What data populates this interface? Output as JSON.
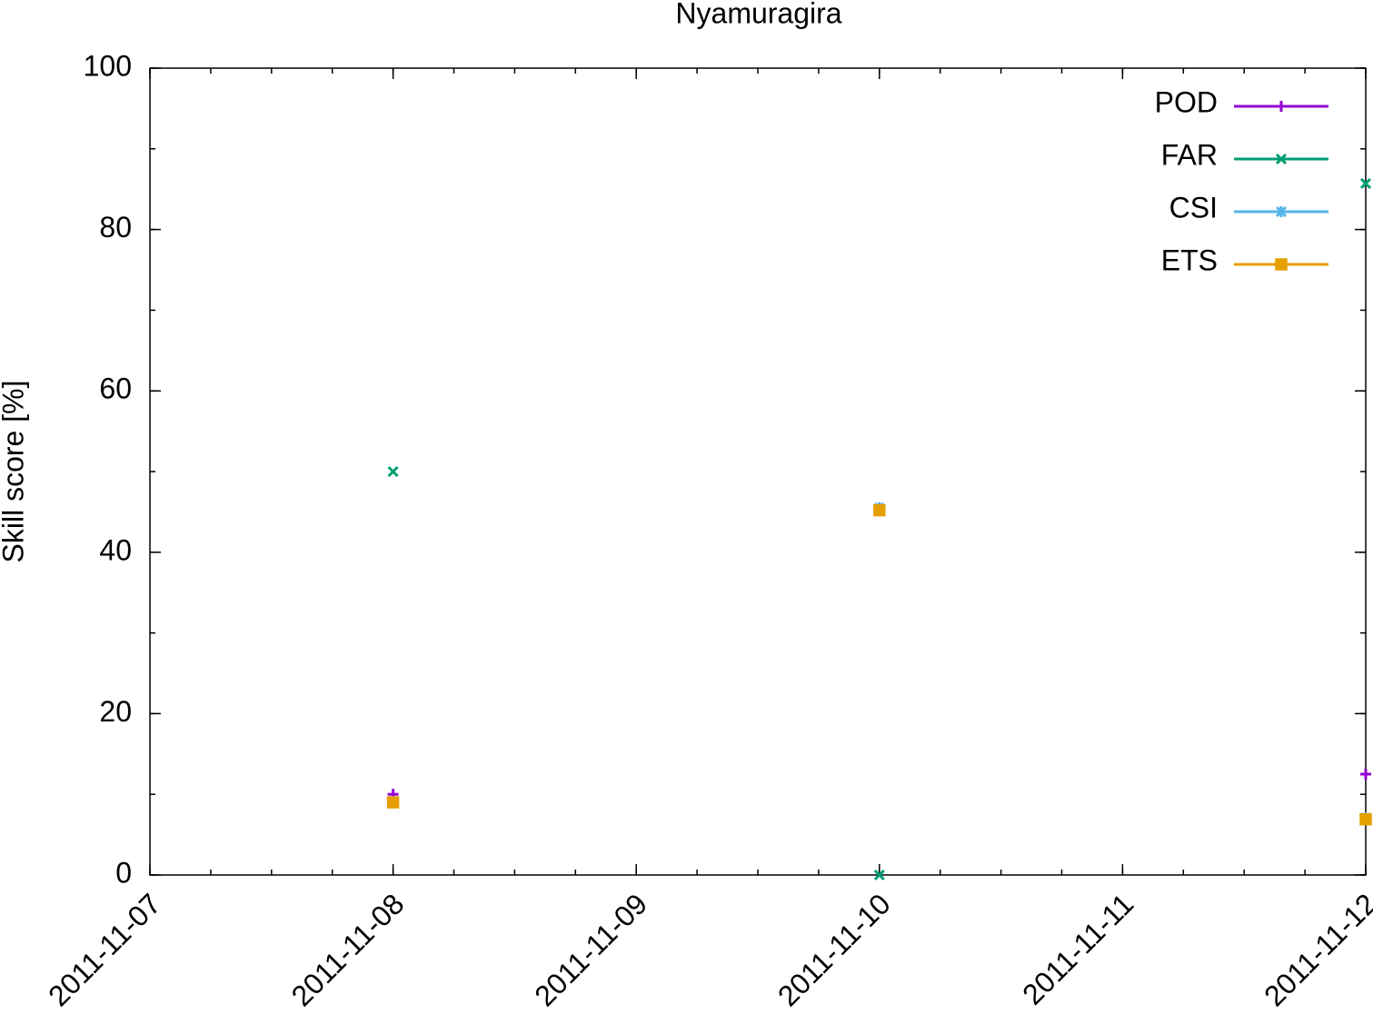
{
  "chart_data": {
    "type": "scatter",
    "title": "Nyamuragira",
    "y_label": "Skill score [%]",
    "x": [
      "2011-11-08",
      "2011-11-10",
      "2011-11-12"
    ],
    "series": [
      {
        "name": "POD",
        "color": "#9400d3",
        "marker": "plus",
        "values": [
          10,
          45.5,
          12.5
        ]
      },
      {
        "name": "FAR",
        "color": "#009e73",
        "marker": "cross",
        "values": [
          50,
          0,
          85.7
        ]
      },
      {
        "name": "CSI",
        "color": "#56b4e9",
        "marker": "star",
        "values": [
          9.1,
          45.5,
          7.1
        ]
      },
      {
        "name": "ETS",
        "color": "#e69f00",
        "marker": "square",
        "values": [
          9,
          45.2,
          6.9
        ]
      }
    ],
    "xlim": [
      "2011-11-07",
      "2011-11-12"
    ],
    "xticks": [
      "2011-11-07",
      "2011-11-08",
      "2011-11-09",
      "2011-11-10",
      "2011-11-11",
      "2011-11-12"
    ],
    "ylim": [
      0,
      100
    ],
    "yticks": [
      0,
      20,
      40,
      60,
      80,
      100
    ],
    "legend": "top-right"
  }
}
